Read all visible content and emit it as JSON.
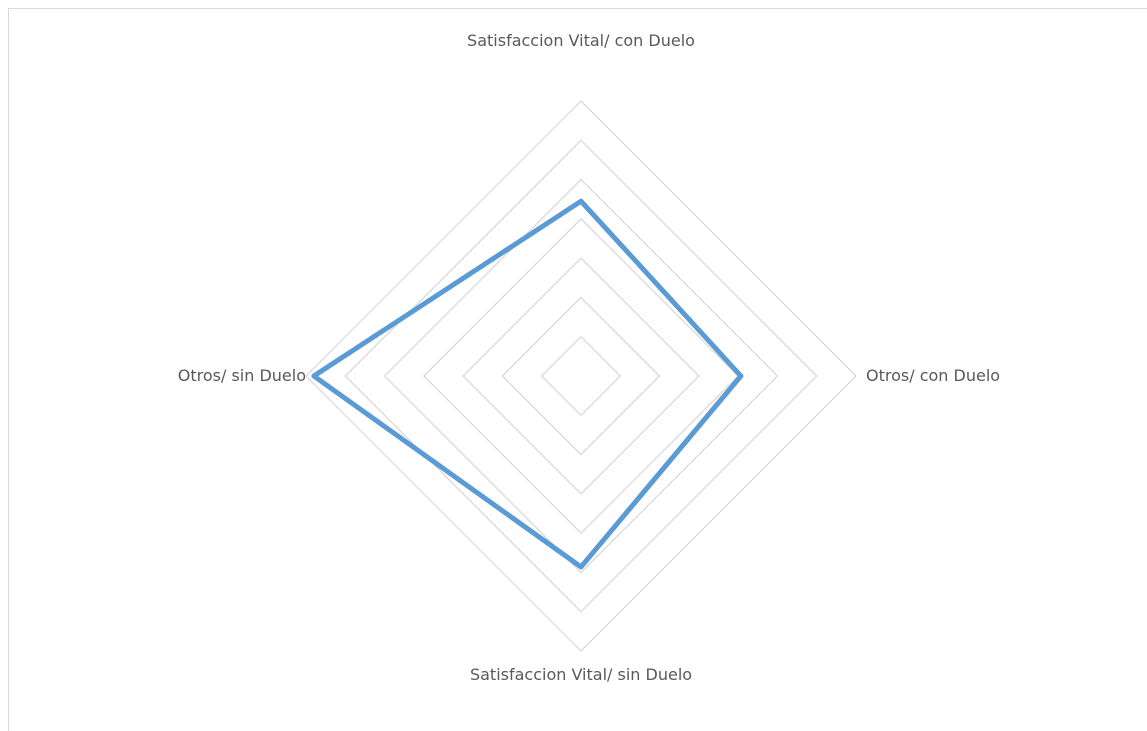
{
  "chart_data": {
    "type": "radar",
    "categories": [
      "Satisfaccion Vital/ con Duelo",
      "Otros/ con Duelo",
      "Satisfaccion Vital/ sin Duelo",
      "Otros/ sin Duelo"
    ],
    "series": [
      {
        "color": "#5b9bd5",
        "values": [
          4.45,
          4.07,
          4.86,
          6.8
        ]
      }
    ],
    "ylim": [
      0,
      7
    ],
    "yticks": [
      1,
      2,
      3,
      4,
      5,
      6,
      7
    ],
    "grid": true
  }
}
